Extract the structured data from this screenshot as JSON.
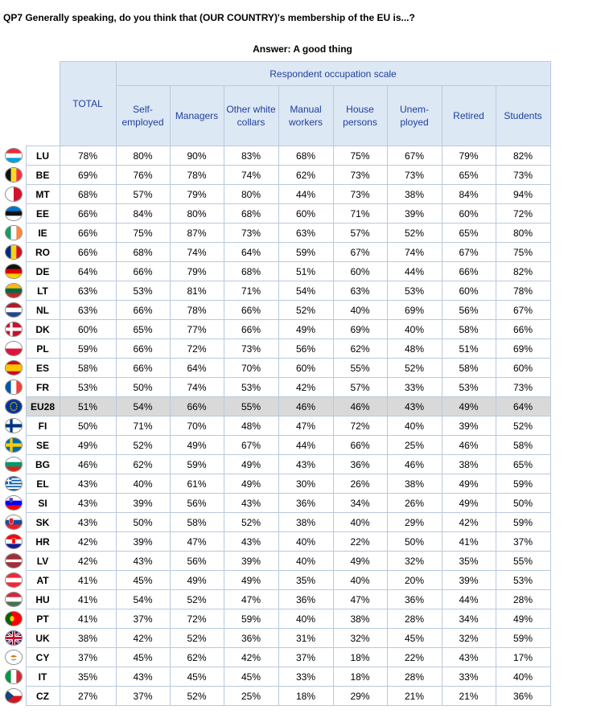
{
  "title": "QP7 Generally speaking, do you think that (OUR COUNTRY)'s membership of the EU is...?",
  "subtitle": "Answer: A good thing",
  "header": {
    "total": "TOTAL",
    "group": "Respondent occupation scale",
    "columns": [
      [
        "Self-",
        "employed"
      ],
      [
        "Managers"
      ],
      [
        "Other white",
        "collars"
      ],
      [
        "Manual",
        "workers"
      ],
      [
        "House",
        "persons"
      ],
      [
        "Unem-",
        "ployed"
      ],
      [
        "Retired"
      ],
      [
        "Students"
      ]
    ]
  },
  "highlight_row": "EU28",
  "rows": [
    {
      "country": "LU",
      "flag": "luxembourg-flag",
      "values": [
        "78%",
        "80%",
        "90%",
        "83%",
        "68%",
        "75%",
        "67%",
        "79%",
        "82%"
      ]
    },
    {
      "country": "BE",
      "flag": "belgium-flag",
      "values": [
        "69%",
        "76%",
        "78%",
        "74%",
        "62%",
        "73%",
        "73%",
        "65%",
        "73%"
      ]
    },
    {
      "country": "MT",
      "flag": "malta-flag",
      "values": [
        "68%",
        "57%",
        "79%",
        "80%",
        "44%",
        "73%",
        "38%",
        "84%",
        "94%"
      ]
    },
    {
      "country": "EE",
      "flag": "estonia-flag",
      "values": [
        "66%",
        "84%",
        "80%",
        "68%",
        "60%",
        "71%",
        "39%",
        "60%",
        "72%"
      ]
    },
    {
      "country": "IE",
      "flag": "ireland-flag",
      "values": [
        "66%",
        "75%",
        "87%",
        "73%",
        "63%",
        "57%",
        "52%",
        "65%",
        "80%"
      ]
    },
    {
      "country": "RO",
      "flag": "romania-flag",
      "values": [
        "66%",
        "68%",
        "74%",
        "64%",
        "59%",
        "67%",
        "74%",
        "67%",
        "75%"
      ]
    },
    {
      "country": "DE",
      "flag": "germany-flag",
      "values": [
        "64%",
        "66%",
        "79%",
        "68%",
        "51%",
        "60%",
        "44%",
        "66%",
        "82%"
      ]
    },
    {
      "country": "LT",
      "flag": "lithuania-flag",
      "values": [
        "63%",
        "53%",
        "81%",
        "71%",
        "54%",
        "63%",
        "53%",
        "60%",
        "78%"
      ]
    },
    {
      "country": "NL",
      "flag": "netherlands-flag",
      "values": [
        "63%",
        "66%",
        "78%",
        "66%",
        "52%",
        "40%",
        "69%",
        "56%",
        "67%"
      ]
    },
    {
      "country": "DK",
      "flag": "denmark-flag",
      "values": [
        "60%",
        "65%",
        "77%",
        "66%",
        "49%",
        "69%",
        "40%",
        "58%",
        "66%"
      ]
    },
    {
      "country": "PL",
      "flag": "poland-flag",
      "values": [
        "59%",
        "66%",
        "72%",
        "73%",
        "56%",
        "62%",
        "48%",
        "51%",
        "69%"
      ]
    },
    {
      "country": "ES",
      "flag": "spain-flag",
      "values": [
        "58%",
        "66%",
        "64%",
        "70%",
        "60%",
        "55%",
        "52%",
        "58%",
        "60%"
      ]
    },
    {
      "country": "FR",
      "flag": "france-flag",
      "values": [
        "53%",
        "50%",
        "74%",
        "53%",
        "42%",
        "57%",
        "33%",
        "53%",
        "73%"
      ]
    },
    {
      "country": "EU28",
      "flag": "eu-flag",
      "values": [
        "51%",
        "54%",
        "66%",
        "55%",
        "46%",
        "46%",
        "43%",
        "49%",
        "64%"
      ]
    },
    {
      "country": "FI",
      "flag": "finland-flag",
      "values": [
        "50%",
        "71%",
        "70%",
        "48%",
        "47%",
        "72%",
        "40%",
        "39%",
        "52%"
      ]
    },
    {
      "country": "SE",
      "flag": "sweden-flag",
      "values": [
        "49%",
        "52%",
        "49%",
        "67%",
        "44%",
        "66%",
        "25%",
        "46%",
        "58%"
      ]
    },
    {
      "country": "BG",
      "flag": "bulgaria-flag",
      "values": [
        "46%",
        "62%",
        "59%",
        "49%",
        "43%",
        "36%",
        "46%",
        "38%",
        "65%"
      ]
    },
    {
      "country": "EL",
      "flag": "greece-flag",
      "values": [
        "43%",
        "40%",
        "61%",
        "49%",
        "30%",
        "26%",
        "38%",
        "49%",
        "59%"
      ]
    },
    {
      "country": "SI",
      "flag": "slovenia-flag",
      "values": [
        "43%",
        "39%",
        "56%",
        "43%",
        "36%",
        "34%",
        "26%",
        "49%",
        "50%"
      ]
    },
    {
      "country": "SK",
      "flag": "slovakia-flag",
      "values": [
        "43%",
        "50%",
        "58%",
        "52%",
        "38%",
        "40%",
        "29%",
        "42%",
        "59%"
      ]
    },
    {
      "country": "HR",
      "flag": "croatia-flag",
      "values": [
        "42%",
        "39%",
        "47%",
        "43%",
        "40%",
        "22%",
        "50%",
        "41%",
        "37%"
      ]
    },
    {
      "country": "LV",
      "flag": "latvia-flag",
      "values": [
        "42%",
        "43%",
        "56%",
        "39%",
        "40%",
        "49%",
        "32%",
        "35%",
        "55%"
      ]
    },
    {
      "country": "AT",
      "flag": "austria-flag",
      "values": [
        "41%",
        "45%",
        "49%",
        "49%",
        "35%",
        "40%",
        "20%",
        "39%",
        "53%"
      ]
    },
    {
      "country": "HU",
      "flag": "hungary-flag",
      "values": [
        "41%",
        "54%",
        "52%",
        "47%",
        "36%",
        "47%",
        "36%",
        "44%",
        "28%"
      ]
    },
    {
      "country": "PT",
      "flag": "portugal-flag",
      "values": [
        "41%",
        "37%",
        "72%",
        "59%",
        "40%",
        "38%",
        "28%",
        "34%",
        "49%"
      ]
    },
    {
      "country": "UK",
      "flag": "uk-flag",
      "values": [
        "38%",
        "42%",
        "52%",
        "36%",
        "31%",
        "32%",
        "45%",
        "32%",
        "59%"
      ]
    },
    {
      "country": "CY",
      "flag": "cyprus-flag",
      "values": [
        "37%",
        "45%",
        "62%",
        "42%",
        "37%",
        "18%",
        "22%",
        "43%",
        "17%"
      ]
    },
    {
      "country": "IT",
      "flag": "italy-flag",
      "values": [
        "35%",
        "43%",
        "45%",
        "45%",
        "33%",
        "18%",
        "28%",
        "33%",
        "40%"
      ]
    },
    {
      "country": "CZ",
      "flag": "czech-republic-flag",
      "values": [
        "27%",
        "37%",
        "52%",
        "25%",
        "18%",
        "29%",
        "21%",
        "21%",
        "36%"
      ]
    }
  ],
  "colors": {
    "header_bg": "#dde8f5",
    "header_text": "#1f3f9b",
    "border": "#b9c9dd",
    "highlight_bg": "#d9d9d9"
  }
}
